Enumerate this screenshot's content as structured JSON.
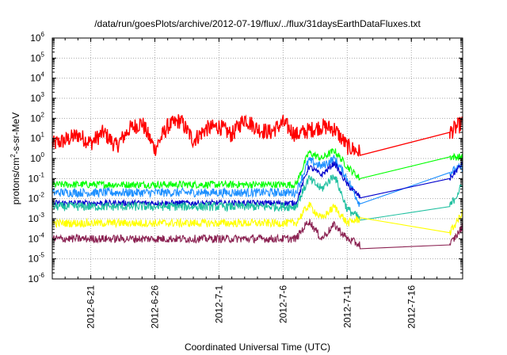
{
  "chart_data": {
    "type": "line",
    "title": "/data/run/goesPlots/archive/2012-07-19/flux/../flux/31daysEarthDataFluxes.txt",
    "xlabel": "Coordinated Universal Time (UTC)",
    "ylabel": "protons/cm2-s-sr-MeV",
    "ylabel_parts": {
      "before": "protons/cm",
      "sup": "2",
      "after": "-s-sr-MeV"
    },
    "y_scale": "log",
    "ylim_exponents": [
      -6,
      6
    ],
    "y_ticks": [
      {
        "base": "10",
        "exp": "-6"
      },
      {
        "base": "10",
        "exp": "-5"
      },
      {
        "base": "10",
        "exp": "-4"
      },
      {
        "base": "10",
        "exp": "-3"
      },
      {
        "base": "10",
        "exp": "-2"
      },
      {
        "base": "10",
        "exp": "-1"
      },
      {
        "base": "10",
        "exp": "0"
      },
      {
        "base": "10",
        "exp": "1"
      },
      {
        "base": "10",
        "exp": "2"
      },
      {
        "base": "10",
        "exp": "3"
      },
      {
        "base": "10",
        "exp": "4"
      },
      {
        "base": "10",
        "exp": "5"
      },
      {
        "base": "10",
        "exp": "6"
      }
    ],
    "xlim": [
      "2012-06-18",
      "2012-07-20"
    ],
    "x_ticks": [
      "2012-6-21",
      "2012-6-26",
      "2012-7-1",
      "2012-7-6",
      "2012-7-11",
      "2012-7-16"
    ],
    "x_tick_dates": [
      "2012-06-21",
      "2012-06-26",
      "2012-07-01",
      "2012-07-06",
      "2012-07-11",
      "2012-07-16"
    ],
    "grid": true,
    "series": [
      {
        "color": "#ff0000",
        "noise": 0.35,
        "points": [
          [
            "2012-06-18",
            5
          ],
          [
            "2012-06-19",
            8
          ],
          [
            "2012-06-20",
            15
          ],
          [
            "2012-06-21",
            6
          ],
          [
            "2012-06-22",
            20
          ],
          [
            "2012-06-23",
            4
          ],
          [
            "2012-06-24",
            30
          ],
          [
            "2012-06-25",
            60
          ],
          [
            "2012-06-26",
            3
          ],
          [
            "2012-06-27",
            40
          ],
          [
            "2012-06-28",
            80
          ],
          [
            "2012-06-29",
            8
          ],
          [
            "2012-06-30",
            30
          ],
          [
            "2012-07-01",
            40
          ],
          [
            "2012-07-02",
            15
          ],
          [
            "2012-07-03",
            100
          ],
          [
            "2012-07-04",
            30
          ],
          [
            "2012-07-05",
            20
          ],
          [
            "2012-07-06",
            60
          ],
          [
            "2012-07-07",
            15
          ],
          [
            "2012-07-08",
            25
          ],
          [
            "2012-07-09",
            40
          ],
          [
            "2012-07-10",
            30
          ],
          [
            "2012-07-11",
            4
          ],
          [
            "2012-07-12",
            2
          ],
          [
            "2012-07-19",
            20
          ],
          [
            "2012-07-20",
            60
          ]
        ]
      },
      {
        "color": "#00ff00",
        "noise": 0.18,
        "points": [
          [
            "2012-06-18",
            0.05
          ],
          [
            "2012-07-07",
            0.05
          ],
          [
            "2012-07-08",
            2
          ],
          [
            "2012-07-09",
            1
          ],
          [
            "2012-07-10",
            2.5
          ],
          [
            "2012-07-11",
            0.4
          ],
          [
            "2012-07-12",
            0.1
          ],
          [
            "2012-07-19",
            1.2
          ],
          [
            "2012-07-20",
            1.2
          ]
        ]
      },
      {
        "color": "#1e90ff",
        "noise": 0.22,
        "points": [
          [
            "2012-06-18",
            0.02
          ],
          [
            "2012-07-07",
            0.02
          ],
          [
            "2012-07-08",
            0.8
          ],
          [
            "2012-07-09",
            0.4
          ],
          [
            "2012-07-10",
            1
          ],
          [
            "2012-07-11",
            0.1
          ],
          [
            "2012-07-12",
            0.005
          ],
          [
            "2012-07-19",
            0.2
          ],
          [
            "2012-07-20",
            0.4
          ]
        ]
      },
      {
        "color": "#0000cd",
        "noise": 0.15,
        "points": [
          [
            "2012-06-18",
            0.006
          ],
          [
            "2012-07-07",
            0.006
          ],
          [
            "2012-07-08",
            0.4
          ],
          [
            "2012-07-09",
            0.15
          ],
          [
            "2012-07-10",
            0.6
          ],
          [
            "2012-07-11",
            0.05
          ],
          [
            "2012-07-12",
            0.012
          ],
          [
            "2012-07-19",
            0.1
          ],
          [
            "2012-07-20",
            0.6
          ]
        ]
      },
      {
        "color": "#20c0a0",
        "noise": 0.22,
        "points": [
          [
            "2012-06-18",
            0.004
          ],
          [
            "2012-07-07",
            0.004
          ],
          [
            "2012-07-08",
            0.1
          ],
          [
            "2012-07-09",
            0.03
          ],
          [
            "2012-07-10",
            0.15
          ],
          [
            "2012-07-11",
            0.003
          ],
          [
            "2012-07-12",
            0.001
          ],
          [
            "2012-07-19",
            0.004
          ],
          [
            "2012-07-20",
            0.05
          ]
        ]
      },
      {
        "color": "#ffff00",
        "noise": 0.2,
        "points": [
          [
            "2012-06-18",
            0.0006
          ],
          [
            "2012-07-07",
            0.0006
          ],
          [
            "2012-07-08",
            0.005
          ],
          [
            "2012-07-09",
            0.001
          ],
          [
            "2012-07-10",
            0.004
          ],
          [
            "2012-07-11",
            0.0006
          ],
          [
            "2012-07-12",
            0.001
          ],
          [
            "2012-07-19",
            0.0002
          ],
          [
            "2012-07-20",
            0.002
          ]
        ]
      },
      {
        "color": "#8b2252",
        "noise": 0.2,
        "points": [
          [
            "2012-06-18",
            0.0001
          ],
          [
            "2012-07-07",
            0.0001
          ],
          [
            "2012-07-08",
            0.0008
          ],
          [
            "2012-07-09",
            0.0001
          ],
          [
            "2012-07-10",
            0.0005
          ],
          [
            "2012-07-11",
            0.0001
          ],
          [
            "2012-07-12",
            5e-05
          ],
          [
            "2012-07-19",
            5e-05
          ],
          [
            "2012-07-20",
            0.0004
          ]
        ]
      }
    ]
  }
}
